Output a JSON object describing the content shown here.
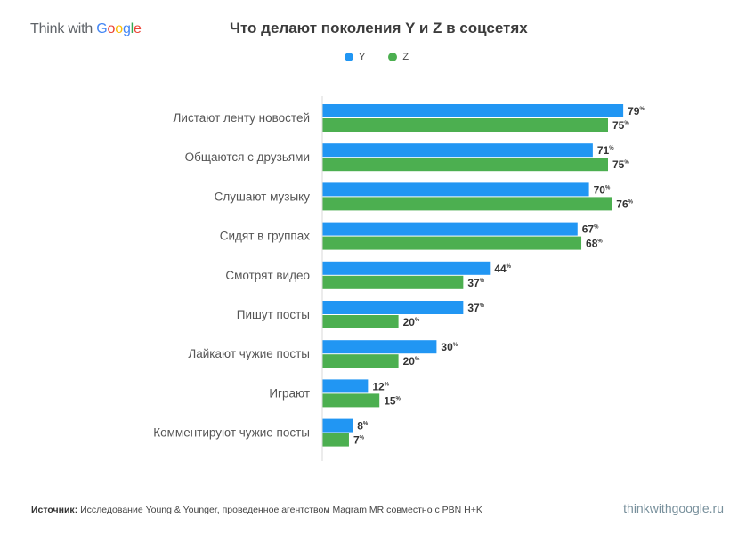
{
  "brand": {
    "prefix": "Think with ",
    "google_letters": [
      {
        "ch": "G",
        "color": "#4285F4"
      },
      {
        "ch": "o",
        "color": "#EA4335"
      },
      {
        "ch": "o",
        "color": "#FBBC05"
      },
      {
        "ch": "g",
        "color": "#4285F4"
      },
      {
        "ch": "l",
        "color": "#34A853"
      },
      {
        "ch": "e",
        "color": "#EA4335"
      }
    ]
  },
  "footer": {
    "source_label": "Источник:",
    "source_text": " Исследование Young & Younger, проведенное агентством Magram MR совместно с PBN H+K",
    "site": "thinkwithgoogle.ru"
  },
  "chart_data": {
    "type": "bar",
    "orientation": "horizontal",
    "title": "Что делают поколения Y и Z в соцсетях",
    "xlabel": "",
    "ylabel": "",
    "unit": "%",
    "xlim": [
      0,
      100
    ],
    "grid": false,
    "legend_position": "top-center",
    "categories": [
      "Листают ленту новостей",
      "Общаются с друзьями",
      "Слушают музыку",
      "Сидят в группах",
      "Смотрят видео",
      "Пишут посты",
      "Лайкают чужие посты",
      "Играют",
      "Комментируют чужие посты"
    ],
    "series": [
      {
        "name": "Y",
        "color": "#2196F3",
        "values": [
          79,
          71,
          70,
          67,
          44,
          37,
          30,
          12,
          8
        ]
      },
      {
        "name": "Z",
        "color": "#4CAF50",
        "values": [
          75,
          75,
          76,
          68,
          37,
          20,
          20,
          15,
          7
        ]
      }
    ]
  }
}
